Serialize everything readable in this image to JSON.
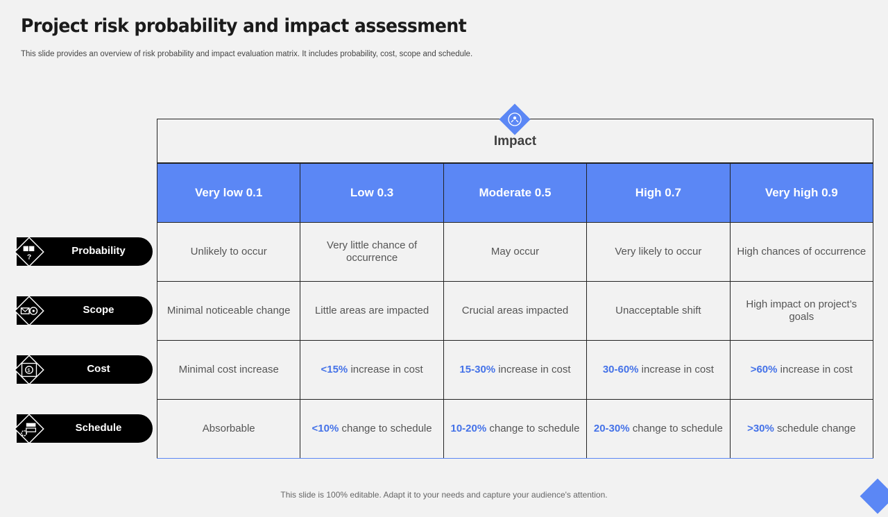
{
  "title": "Project risk probability and impact assessment",
  "subtitle": "This slide provides an overview of risk probability and impact evaluation matrix. It includes probability, cost, scope and schedule.",
  "impact_label": "Impact",
  "columns": [
    "Very low 0.1",
    "Low 0.3",
    "Moderate 0.5",
    "High 0.7",
    "Very high 0.9"
  ],
  "rows": [
    {
      "label": "Probability",
      "icon": "dice-question-icon",
      "cells": [
        {
          "hl": "",
          "text": "Unlikely to occur"
        },
        {
          "hl": "",
          "text": "Very little chance of occurrence"
        },
        {
          "hl": "",
          "text": "May occur"
        },
        {
          "hl": "",
          "text": "Very likely to occur"
        },
        {
          "hl": "",
          "text": "High chances of occurrence"
        }
      ]
    },
    {
      "label": "Scope",
      "icon": "scope-mail-target-icon",
      "cells": [
        {
          "hl": "",
          "text": "Minimal noticeable change"
        },
        {
          "hl": "",
          "text": "Little areas are impacted"
        },
        {
          "hl": "",
          "text": "Crucial areas impacted"
        },
        {
          "hl": "",
          "text": "Unacceptable shift"
        },
        {
          "hl": "",
          "text": "High impact on project’s goals"
        }
      ]
    },
    {
      "label": "Cost",
      "icon": "cost-money-icon",
      "cells": [
        {
          "hl": "",
          "text": "Minimal cost increase"
        },
        {
          "hl": "<15%",
          "text": " increase in cost"
        },
        {
          "hl": "15-30%",
          "text": " increase in cost"
        },
        {
          "hl": "30-60%",
          "text": " increase in cost"
        },
        {
          "hl": ">60%",
          "text": " increase in cost"
        }
      ]
    },
    {
      "label": "Schedule",
      "icon": "schedule-gear-icon",
      "cells": [
        {
          "hl": "",
          "text": "Absorbable"
        },
        {
          "hl": "<10%",
          "text": " change to schedule"
        },
        {
          "hl": "10-20%",
          "text": " change to schedule"
        },
        {
          "hl": "20-30%",
          "text": " change to schedule"
        },
        {
          "hl": ">30%",
          "text": " schedule change"
        }
      ]
    }
  ],
  "footer": "This slide is 100% editable. Adapt it to your needs and capture your audience's attention.",
  "colors": {
    "accent": "#5b87f5",
    "highlight": "#4472e8",
    "pill": "#000000",
    "background": "#f2f2f2"
  }
}
